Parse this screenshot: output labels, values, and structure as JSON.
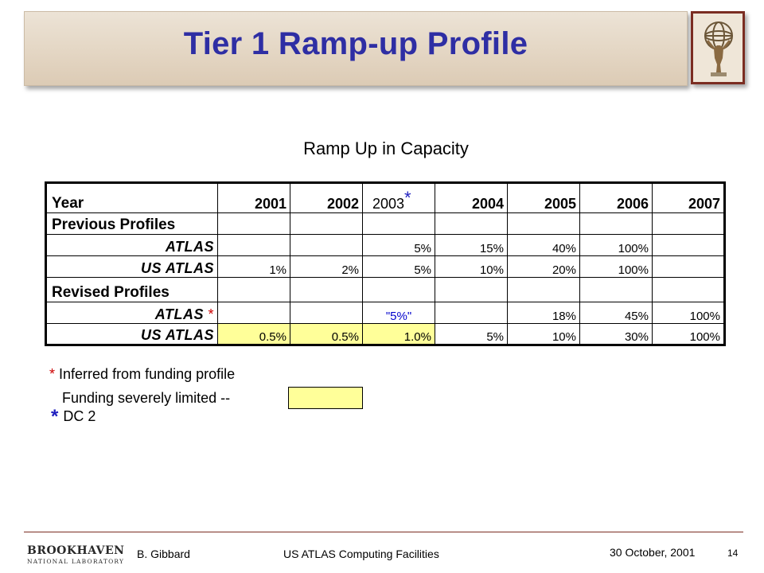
{
  "slide": {
    "title": "Tier 1 Ramp-up Profile",
    "chart_title": "Ramp Up in Capacity"
  },
  "table": {
    "header": {
      "label": "Year",
      "years": [
        "2001",
        "2002",
        "2003",
        "2004",
        "2005",
        "2006",
        "2007"
      ],
      "year_2003_asterisk": "*"
    },
    "previous_section_label": "Previous Profiles",
    "revised_section_label": "Revised Profiles",
    "rows": {
      "prev_atlas": {
        "label": "ATLAS",
        "values": [
          "",
          "",
          "5%",
          "15%",
          "40%",
          "100%",
          ""
        ]
      },
      "prev_us_atlas": {
        "label": "US ATLAS",
        "values": [
          "1%",
          "2%",
          "5%",
          "10%",
          "20%",
          "100%",
          ""
        ]
      },
      "rev_atlas": {
        "label": "ATLAS",
        "asterisk": "*",
        "values": [
          "",
          "",
          "\"5%\"",
          "",
          "18%",
          "45%",
          "100%"
        ]
      },
      "rev_us_atlas": {
        "label": "US ATLAS",
        "values": [
          "0.5%",
          "0.5%",
          "1.0%",
          "5%",
          "10%",
          "30%",
          "100%"
        ]
      }
    }
  },
  "notes": {
    "inferred_asterisk": "*",
    "inferred_text": "Inferred from funding profile",
    "funding_text": "Funding severely limited --",
    "dc2_asterisk": "*",
    "dc2_text": "DC 2"
  },
  "footer": {
    "logo_big": "BROOKHAVEN",
    "logo_small": "NATIONAL LABORATORY",
    "author": "B. Gibbard",
    "presentation_title": "US ATLAS Computing Facilities",
    "date": "30 October, 2001",
    "page_number": "14"
  },
  "colors": {
    "title": "#2e2ea4",
    "highlight": "#ffff99",
    "asterisk_red": "#cc0000",
    "asterisk_blue": "#1f1fbf",
    "quoted_value_blue": "#0000cc",
    "footer_line": "#7b2d22"
  },
  "icons": {
    "logo": "atlas-statue-icon"
  }
}
